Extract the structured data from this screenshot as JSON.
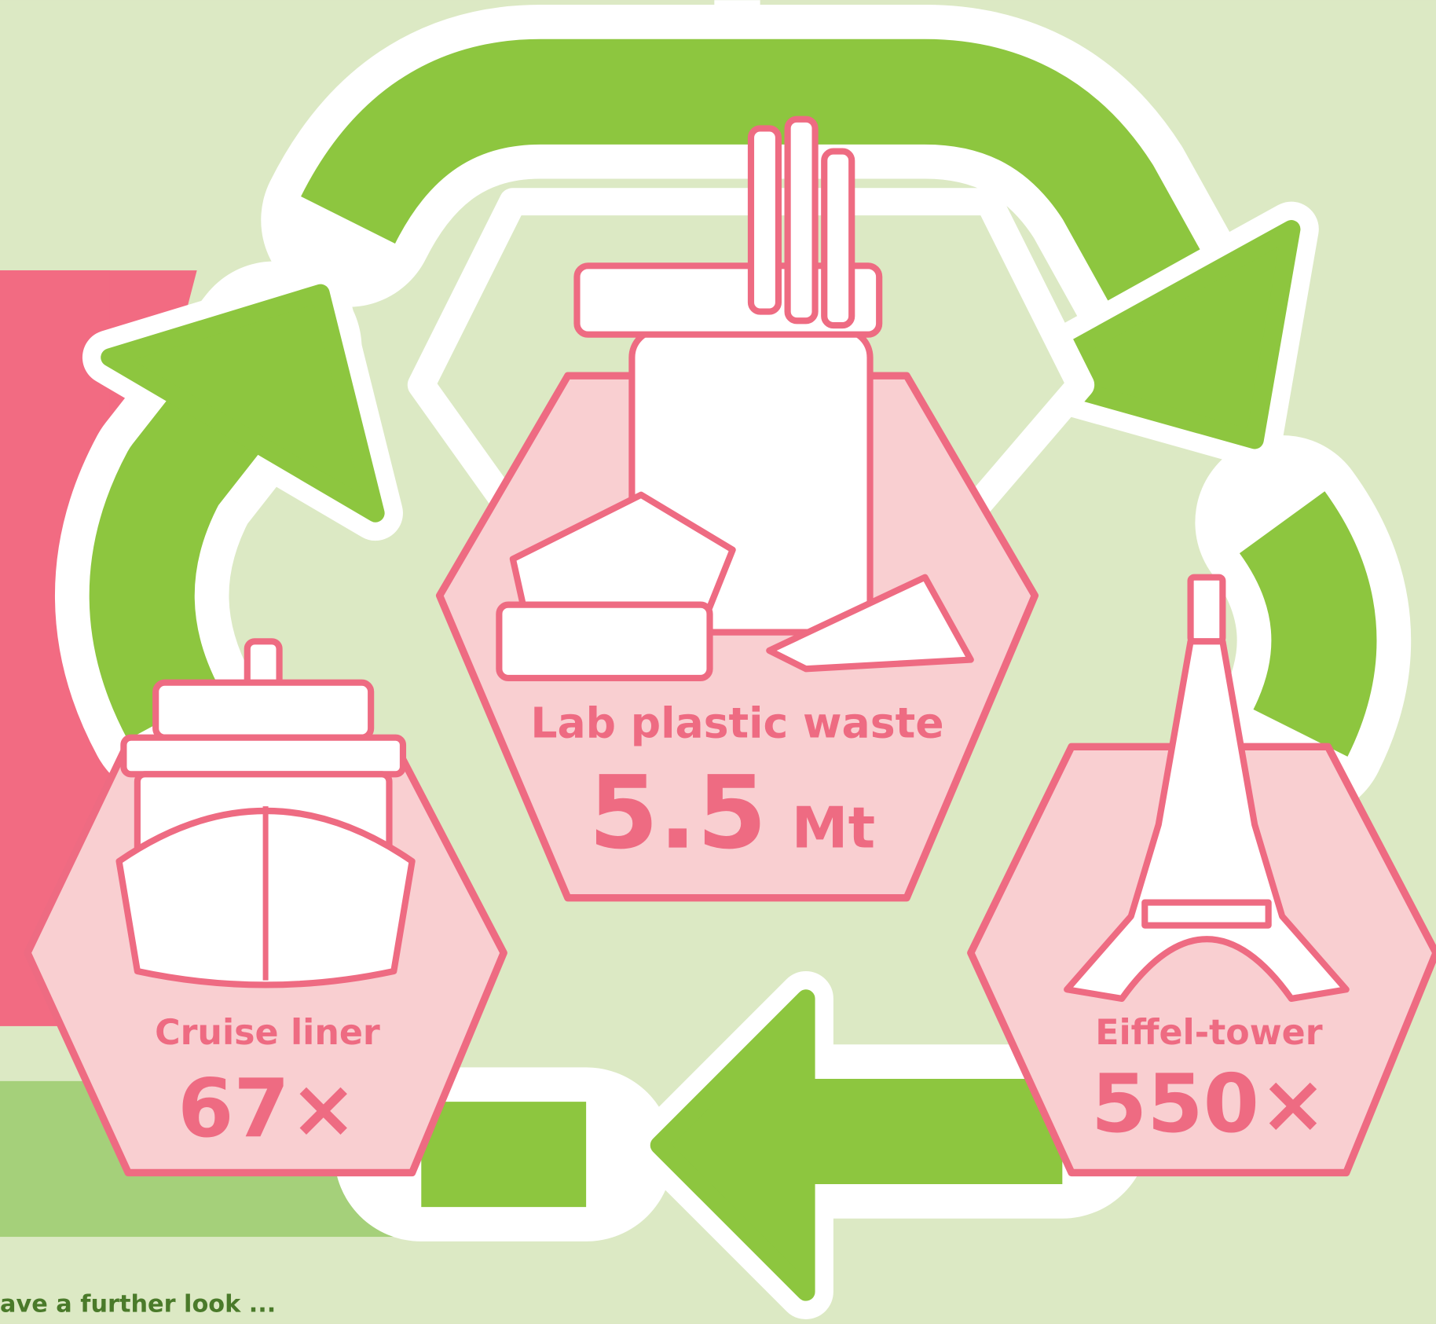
{
  "items": [
    {
      "label": "Lab plastic waste",
      "value": "5.5",
      "unit": "Mt"
    },
    {
      "label": "Cruise liner",
      "value": "67×"
    },
    {
      "label": "Eiffel-tower",
      "value": "550×"
    }
  ],
  "footer": "ave a further look ..."
}
